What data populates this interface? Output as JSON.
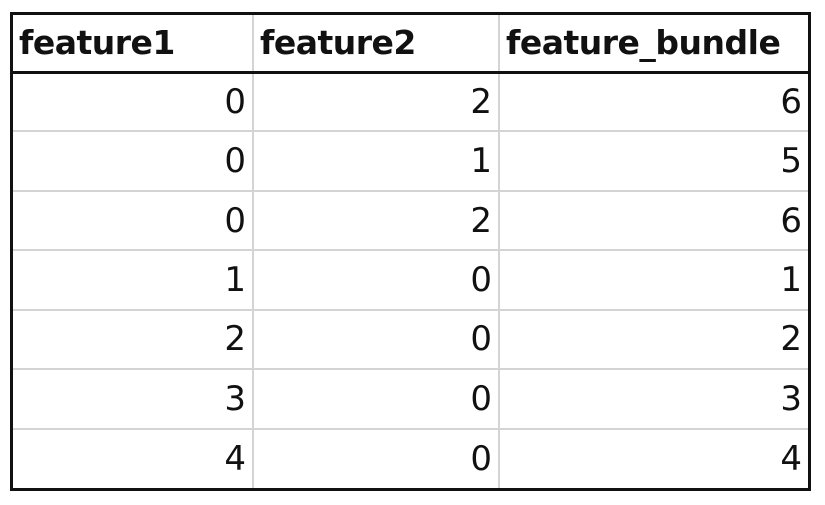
{
  "table": {
    "headers": [
      "feature1",
      "feature2",
      "feature_bundle"
    ],
    "rows": [
      [
        "0",
        "2",
        "6"
      ],
      [
        "0",
        "1",
        "5"
      ],
      [
        "0",
        "2",
        "6"
      ],
      [
        "1",
        "0",
        "1"
      ],
      [
        "2",
        "0",
        "2"
      ],
      [
        "3",
        "0",
        "3"
      ],
      [
        "4",
        "0",
        "4"
      ]
    ]
  },
  "colors": {
    "outer_border": "#111111",
    "grid_line": "#d4d4d4",
    "text": "#111111",
    "background": "#ffffff"
  }
}
